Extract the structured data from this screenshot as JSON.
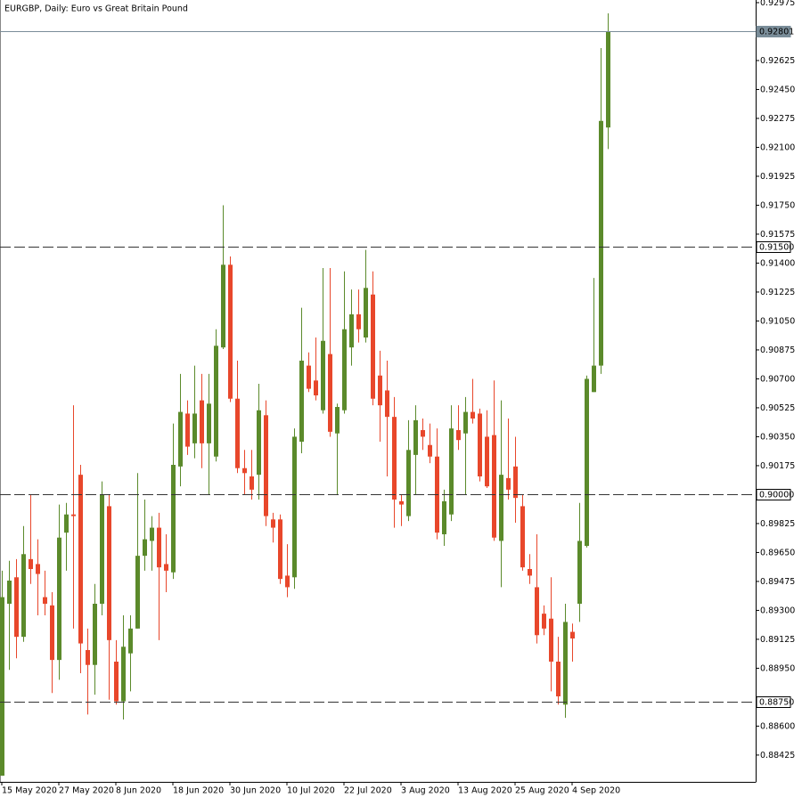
{
  "chart_data": {
    "type": "candlestick",
    "title": "EURGBP, Daily:  Euro vs Great Britain Pound",
    "categories": [
      "15 May 2020",
      null,
      null,
      null,
      null,
      null,
      null,
      null,
      "27 May 2020",
      null,
      null,
      null,
      null,
      null,
      null,
      null,
      "8 Jun 2020",
      null,
      null,
      null,
      null,
      null,
      null,
      null,
      "18 Jun 2020",
      null,
      null,
      null,
      null,
      null,
      null,
      null,
      "30 Jun 2020",
      null,
      null,
      null,
      null,
      null,
      null,
      null,
      "10 Jul 2020",
      null,
      null,
      null,
      null,
      null,
      null,
      null,
      "22 Jul 2020",
      null,
      null,
      null,
      null,
      null,
      null,
      null,
      "3 Aug 2020",
      null,
      null,
      null,
      null,
      null,
      null,
      null,
      "13 Aug 2020",
      null,
      null,
      null,
      null,
      null,
      null,
      null,
      "25 Aug 2020",
      null,
      null,
      null,
      null,
      null,
      null,
      null,
      "4 Sep 2020",
      null,
      null,
      null,
      null,
      null
    ],
    "open": [
      0.883,
      0.8934,
      0.895,
      0.8914,
      0.8961,
      0.8958,
      0.8938,
      0.8933,
      0.89,
      0.8977,
      0.8988,
      0.9012,
      0.8906,
      0.8897,
      0.8934,
      0.8993,
      0.8899,
      0.8875,
      0.8904,
      0.8919,
      0.8963,
      0.8972,
      0.898,
      0.8958,
      0.8953,
      0.9017,
      0.9049,
      0.9031,
      0.9057,
      0.9031,
      0.9023,
      0.9089,
      0.9139,
      0.9058,
      0.9016,
      0.9011,
      0.9012,
      0.9048,
      0.8985,
      0.8985,
      0.8951,
      0.895,
      0.9032,
      0.9078,
      0.9069,
      0.9051,
      0.9085,
      0.9037,
      0.9051,
      0.9089,
      0.9109,
      0.9095,
      0.9121,
      0.9072,
      0.9063,
      0.9047,
      0.8996,
      0.8987,
      0.9024,
      0.9039,
      0.903,
      0.9023,
      0.8976,
      0.8988,
      0.9039,
      0.9037,
      0.905,
      0.9049,
      0.9035,
      0.9036,
      0.8972,
      0.901,
      0.9017,
      0.8993,
      0.8955,
      0.8944,
      0.8928,
      0.8925,
      0.8899,
      0.8873,
      0.8917,
      0.8934,
      0.8969,
      0.9062,
      0.9078,
      0.9222
    ],
    "high": [
      0.8954,
      0.896,
      0.8961,
      0.8981,
      0.9,
      0.8973,
      0.8954,
      0.8941,
      0.8994,
      0.8995,
      0.9054,
      0.9018,
      0.8919,
      0.8946,
      0.9008,
      0.9,
      0.8912,
      0.8927,
      0.8927,
      0.9013,
      0.8997,
      0.8987,
      0.8989,
      0.8976,
      0.9043,
      0.9073,
      0.9057,
      0.9078,
      0.9073,
      0.9073,
      0.91,
      0.9175,
      0.9144,
      0.9081,
      0.9027,
      0.9027,
      0.9067,
      0.9057,
      0.8989,
      0.8988,
      0.897,
      0.904,
      0.9113,
      0.9086,
      0.9095,
      0.9137,
      0.9137,
      0.9055,
      0.9135,
      0.9124,
      0.9124,
      0.9148,
      0.9135,
      0.9087,
      0.9081,
      0.9059,
      0.9,
      0.9045,
      0.9054,
      0.9046,
      0.9043,
      0.904,
      0.9003,
      0.9054,
      0.9054,
      0.9059,
      0.907,
      0.9052,
      0.9051,
      0.9069,
      0.9057,
      0.9046,
      0.9035,
      0.9,
      0.8964,
      0.8976,
      0.8933,
      0.895,
      0.8914,
      0.8934,
      0.8922,
      0.8995,
      0.9072,
      0.9131,
      0.927,
      0.9291
    ],
    "low": [
      0.883,
      0.8894,
      0.8901,
      0.8911,
      0.8946,
      0.8927,
      0.8927,
      0.888,
      0.8888,
      0.8954,
      0.8919,
      0.8892,
      0.8867,
      0.8879,
      0.8927,
      0.8876,
      0.8873,
      0.8864,
      0.8881,
      0.8919,
      0.8954,
      0.8954,
      0.8912,
      0.8941,
      0.8949,
      0.9005,
      0.9024,
      0.9022,
      0.9016,
      0.9,
      0.902,
      0.9088,
      0.9056,
      0.9013,
      0.9,
      0.8997,
      0.8997,
      0.8981,
      0.8971,
      0.8946,
      0.8938,
      0.8943,
      0.9025,
      0.9062,
      0.9057,
      0.9049,
      0.9035,
      0.9,
      0.9049,
      0.9078,
      0.9092,
      0.9092,
      0.9054,
      0.9032,
      0.9011,
      0.898,
      0.8981,
      0.8984,
      0.9,
      0.9027,
      0.9019,
      0.8973,
      0.8969,
      0.8984,
      0.9027,
      0.9,
      0.9043,
      0.9008,
      0.9004,
      0.8972,
      0.8944,
      0.8997,
      0.8983,
      0.8954,
      0.8946,
      0.891,
      0.8915,
      0.8881,
      0.8873,
      0.8865,
      0.8899,
      0.8923,
      0.8968,
      0.9062,
      0.9073,
      0.9209
    ],
    "close": [
      0.8938,
      0.8948,
      0.8914,
      0.8964,
      0.8955,
      0.8952,
      0.8934,
      0.89,
      0.8974,
      0.8988,
      0.8987,
      0.891,
      0.8897,
      0.8934,
      0.9,
      0.8912,
      0.8875,
      0.8908,
      0.8919,
      0.8963,
      0.8973,
      0.898,
      0.8956,
      0.8954,
      0.9018,
      0.905,
      0.9029,
      0.9049,
      0.9031,
      0.9055,
      0.909,
      0.9139,
      0.9058,
      0.9016,
      0.9013,
      0.9003,
      0.9051,
      0.8987,
      0.898,
      0.8949,
      0.8944,
      0.9035,
      0.9081,
      0.9064,
      0.906,
      0.9093,
      0.9038,
      0.9053,
      0.91,
      0.9109,
      0.91,
      0.9125,
      0.9058,
      0.9054,
      0.9047,
      0.8997,
      0.8994,
      0.9027,
      0.9045,
      0.9035,
      0.9023,
      0.8977,
      0.8996,
      0.904,
      0.9033,
      0.905,
      0.9046,
      0.9011,
      0.9005,
      0.8974,
      0.9012,
      0.9003,
      0.8998,
      0.8956,
      0.8951,
      0.8915,
      0.8919,
      0.8899,
      0.8878,
      0.8923,
      0.8913,
      0.8972,
      0.907,
      0.9078,
      0.9226,
      0.92801
    ],
    "up_color": "#5b8a2b",
    "down_color": "#e8472b",
    "ylim": [
      0.88263,
      0.92991
    ],
    "yticks": [
      0.92975,
      0.92625,
      {
        "value": 0.9245,
        "label": "0.92450"
      },
      0.92275,
      {
        "value": 0.921,
        "label": "0.92100"
      },
      0.91925,
      {
        "value": 0.9175,
        "label": "0.91750"
      },
      0.91575,
      {
        "value": 0.914,
        "label": "0.91400"
      },
      0.91225,
      {
        "value": 0.9105,
        "label": "0.91050"
      },
      0.90875,
      {
        "value": 0.907,
        "label": "0.90700"
      },
      0.90525,
      {
        "value": 0.9035,
        "label": "0.90350"
      },
      0.90175,
      0.89825,
      {
        "value": 0.8965,
        "label": "0.89650"
      },
      0.89475,
      {
        "value": 0.893,
        "label": "0.89300"
      },
      0.89125,
      {
        "value": 0.8895,
        "label": "0.88950"
      },
      {
        "value": 0.886,
        "label": "0.88600"
      },
      0.88425
    ],
    "levels": [
      {
        "value": 0.92801,
        "style": "solid",
        "color": "#7a8d99"
      },
      {
        "value": 0.915,
        "label": "0.91500",
        "style": "dashed",
        "color": "#333333"
      },
      {
        "value": 0.9,
        "label": "0.90000",
        "style": "dashed",
        "color": "#333333"
      },
      {
        "value": 0.8875,
        "label": "0.88750",
        "style": "dashed",
        "color": "#333333"
      }
    ]
  }
}
